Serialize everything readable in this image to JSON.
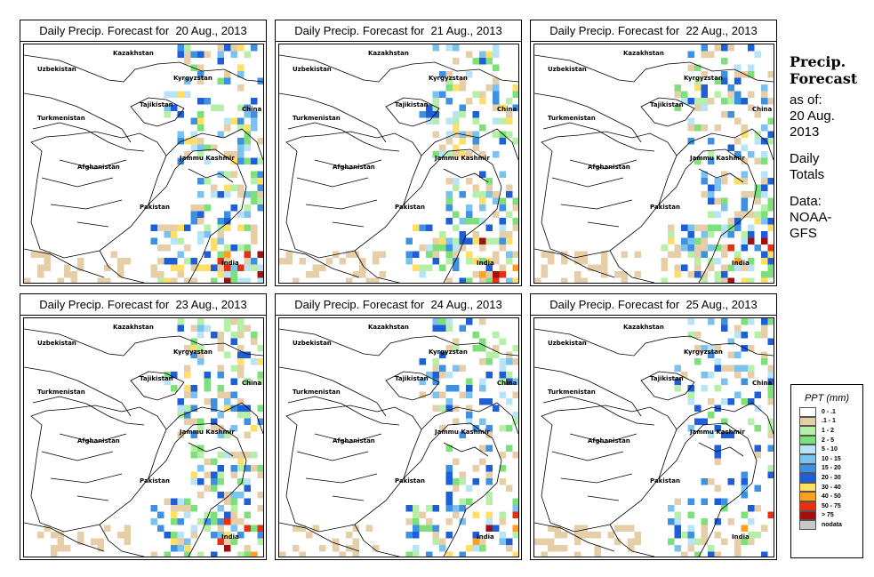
{
  "panels": [
    {
      "title": "Daily Precip. Forecast for  20 Aug., 2013",
      "intensity": 0.9
    },
    {
      "title": "Daily Precip. Forecast for  21 Aug., 2013",
      "intensity": 0.85
    },
    {
      "title": "Daily Precip. Forecast for  22 Aug., 2013",
      "intensity": 0.95
    },
    {
      "title": "Daily Precip. Forecast for  23 Aug., 2013",
      "intensity": 0.8
    },
    {
      "title": "Daily Precip. Forecast for  24 Aug., 2013",
      "intensity": 0.55
    },
    {
      "title": "Daily Precip. Forecast for  25 Aug., 2013",
      "intensity": 0.5
    }
  ],
  "map_labels": {
    "kazakhstan": "Kazakhstan",
    "uzbekistan": "Uzbekistan",
    "kyrgyzstan": "Kyrgyzstan",
    "tajikistan": "Tajikistan",
    "china": "China",
    "turkmenistan": "Turkmenistan",
    "afghanistan": "Afghanistan",
    "jammu_kashmir": "Jammu Kashmir",
    "pakistan": "Pakistan",
    "india": "India"
  },
  "side_info": {
    "title_line1": "Precip.",
    "title_line2": "Forecast",
    "asof_line1": "as of:",
    "asof_line2": "20 Aug.",
    "asof_line3": "2013",
    "totals_line1": "Daily",
    "totals_line2": "Totals",
    "data_line1": "Data:",
    "data_line2": "NOAA-",
    "data_line3": "GFS"
  },
  "legend": {
    "title": "PPT (mm)",
    "items": [
      {
        "label": "0 - .1",
        "color": "#ffffff"
      },
      {
        "label": ".1 - 1",
        "color": "#e6cfa8"
      },
      {
        "label": "1 - 2",
        "color": "#b6f0a8"
      },
      {
        "label": "2 - 5",
        "color": "#7de07a"
      },
      {
        "label": "5 - 10",
        "color": "#b9e4f7"
      },
      {
        "label": "10 - 15",
        "color": "#7cc2ef"
      },
      {
        "label": "15 - 20",
        "color": "#3e90e0"
      },
      {
        "label": "20 - 30",
        "color": "#1e5fd8"
      },
      {
        "label": "30 - 40",
        "color": "#ffe066"
      },
      {
        "label": "40 - 50",
        "color": "#ffa020"
      },
      {
        "label": "50 - 75",
        "color": "#e83010"
      },
      {
        "label": "> 75",
        "color": "#a01010"
      },
      {
        "label": "nodata",
        "color": "#c8c8c8"
      }
    ]
  }
}
